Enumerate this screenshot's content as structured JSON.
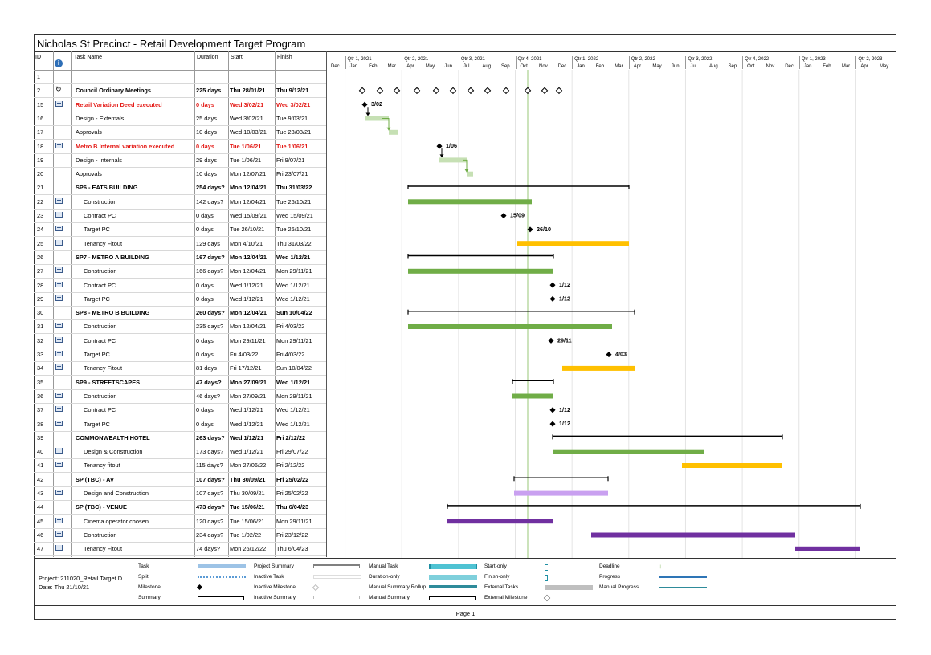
{
  "title": "Nicholas St Precinct - Retail Development Target Program",
  "columns": {
    "id": "ID",
    "name": "Task Name",
    "duration": "Duration",
    "start": "Start",
    "finish": "Finish"
  },
  "rows": [
    {
      "id": "1",
      "name": "",
      "duration": "",
      "start": "",
      "finish": "",
      "icon": "",
      "style": ""
    },
    {
      "id": "2",
      "name": "Council Ordinary Meetings",
      "duration": "225 days",
      "start": "Thu 28/01/21",
      "finish": "Thu 9/12/21",
      "icon": "recurring-icon",
      "style": "bold"
    },
    {
      "id": "15",
      "name": "Retail Variation Deed executed",
      "duration": "0 days",
      "start": "Wed 3/02/21",
      "finish": "Wed 3/02/21",
      "icon": "calendar-icon",
      "style": "red"
    },
    {
      "id": "16",
      "name": "Design - Externals",
      "duration": "25 days",
      "start": "Wed 3/02/21",
      "finish": "Tue 9/03/21",
      "icon": "",
      "style": ""
    },
    {
      "id": "17",
      "name": "Approvals",
      "duration": "10 days",
      "start": "Wed 10/03/21",
      "finish": "Tue 23/03/21",
      "icon": "",
      "style": ""
    },
    {
      "id": "18",
      "name": "Metro B Internal variation executed",
      "duration": "0 days",
      "start": "Tue 1/06/21",
      "finish": "Tue 1/06/21",
      "icon": "calendar-icon",
      "style": "red"
    },
    {
      "id": "19",
      "name": "Design - Internals",
      "duration": "29 days",
      "start": "Tue 1/06/21",
      "finish": "Fri 9/07/21",
      "icon": "",
      "style": ""
    },
    {
      "id": "20",
      "name": "Approvals",
      "duration": "10 days",
      "start": "Mon 12/07/21",
      "finish": "Fri 23/07/21",
      "icon": "",
      "style": ""
    },
    {
      "id": "21",
      "name": "SP6 - EATS BUILDING",
      "duration": "254 days?",
      "start": "Mon 12/04/21",
      "finish": "Thu 31/03/22",
      "icon": "",
      "style": "bold"
    },
    {
      "id": "22",
      "name": "Construction",
      "duration": "142 days?",
      "start": "Mon 12/04/21",
      "finish": "Tue 26/10/21",
      "icon": "calendar-icon",
      "style": "indent"
    },
    {
      "id": "23",
      "name": "Contract PC",
      "duration": "0 days",
      "start": "Wed 15/09/21",
      "finish": "Wed 15/09/21",
      "icon": "calendar-icon",
      "style": "indent"
    },
    {
      "id": "24",
      "name": "Target PC",
      "duration": "0 days",
      "start": "Tue 26/10/21",
      "finish": "Tue 26/10/21",
      "icon": "calendar-icon",
      "style": "indent"
    },
    {
      "id": "25",
      "name": "Tenancy Fitout",
      "duration": "129 days",
      "start": "Mon 4/10/21",
      "finish": "Thu 31/03/22",
      "icon": "calendar-icon",
      "style": "indent"
    },
    {
      "id": "26",
      "name": "SP7 - METRO A BUILDING",
      "duration": "167 days?",
      "start": "Mon 12/04/21",
      "finish": "Wed 1/12/21",
      "icon": "",
      "style": "bold"
    },
    {
      "id": "27",
      "name": "Construction",
      "duration": "166 days?",
      "start": "Mon 12/04/21",
      "finish": "Mon 29/11/21",
      "icon": "calendar-icon",
      "style": "indent"
    },
    {
      "id": "28",
      "name": "Contract PC",
      "duration": "0 days",
      "start": "Wed 1/12/21",
      "finish": "Wed 1/12/21",
      "icon": "calendar-icon",
      "style": "indent"
    },
    {
      "id": "29",
      "name": "Target PC",
      "duration": "0 days",
      "start": "Wed 1/12/21",
      "finish": "Wed 1/12/21",
      "icon": "calendar-icon",
      "style": "indent"
    },
    {
      "id": "30",
      "name": "SP8 - METRO B BUILDING",
      "duration": "260 days?",
      "start": "Mon 12/04/21",
      "finish": "Sun 10/04/22",
      "icon": "",
      "style": "bold"
    },
    {
      "id": "31",
      "name": "Construction",
      "duration": "235 days?",
      "start": "Mon 12/04/21",
      "finish": "Fri 4/03/22",
      "icon": "calendar-icon",
      "style": "indent"
    },
    {
      "id": "32",
      "name": "Contract PC",
      "duration": "0 days",
      "start": "Mon 29/11/21",
      "finish": "Mon 29/11/21",
      "icon": "calendar-icon",
      "style": "indent"
    },
    {
      "id": "33",
      "name": "Target PC",
      "duration": "0 days",
      "start": "Fri 4/03/22",
      "finish": "Fri 4/03/22",
      "icon": "calendar-icon",
      "style": "indent"
    },
    {
      "id": "34",
      "name": "Tenancy Fitout",
      "duration": "81 days",
      "start": "Fri 17/12/21",
      "finish": "Sun 10/04/22",
      "icon": "calendar-icon",
      "style": "indent"
    },
    {
      "id": "35",
      "name": "SP9 - STREETSCAPES",
      "duration": "47 days?",
      "start": "Mon 27/09/21",
      "finish": "Wed 1/12/21",
      "icon": "",
      "style": "bold"
    },
    {
      "id": "36",
      "name": "Construction",
      "duration": "46 days?",
      "start": "Mon 27/09/21",
      "finish": "Mon 29/11/21",
      "icon": "calendar-icon",
      "style": "indent"
    },
    {
      "id": "37",
      "name": "Contract PC",
      "duration": "0 days",
      "start": "Wed 1/12/21",
      "finish": "Wed 1/12/21",
      "icon": "calendar-icon",
      "style": "indent"
    },
    {
      "id": "38",
      "name": "Target PC",
      "duration": "0 days",
      "start": "Wed 1/12/21",
      "finish": "Wed 1/12/21",
      "icon": "calendar-icon",
      "style": "indent"
    },
    {
      "id": "39",
      "name": "COMMONWEALTH HOTEL",
      "duration": "263 days?",
      "start": "Wed 1/12/21",
      "finish": "Fri 2/12/22",
      "icon": "",
      "style": "bold"
    },
    {
      "id": "40",
      "name": "Design & Construction",
      "duration": "173 days?",
      "start": "Wed 1/12/21",
      "finish": "Fri 29/07/22",
      "icon": "calendar-icon",
      "style": "indent"
    },
    {
      "id": "41",
      "name": "Tenancy fitout",
      "duration": "115 days?",
      "start": "Mon 27/06/22",
      "finish": "Fri 2/12/22",
      "icon": "calendar-icon",
      "style": "indent"
    },
    {
      "id": "42",
      "name": "SP (TBC) - AV",
      "duration": "107 days?",
      "start": "Thu 30/09/21",
      "finish": "Fri 25/02/22",
      "icon": "",
      "style": "bold"
    },
    {
      "id": "43",
      "name": "Design and Construction",
      "duration": "107 days?",
      "start": "Thu 30/09/21",
      "finish": "Fri 25/02/22",
      "icon": "calendar-icon",
      "style": "indent"
    },
    {
      "id": "44",
      "name": "SP (TBC) - VENUE",
      "duration": "473 days?",
      "start": "Tue 15/06/21",
      "finish": "Thu 6/04/23",
      "icon": "",
      "style": "bold"
    },
    {
      "id": "45",
      "name": "Cinema operator chosen",
      "duration": "120 days?",
      "start": "Tue 15/06/21",
      "finish": "Mon 29/11/21",
      "icon": "calendar-icon",
      "style": "indent"
    },
    {
      "id": "46",
      "name": "Construction",
      "duration": "234 days?",
      "start": "Tue 1/02/22",
      "finish": "Fri 23/12/22",
      "icon": "calendar-icon",
      "style": "indent"
    },
    {
      "id": "47",
      "name": "Tenancy Fitout",
      "duration": "74 days?",
      "start": "Mon 26/12/22",
      "finish": "Thu 6/04/23",
      "icon": "calendar-icon",
      "style": "indent"
    }
  ],
  "timeline": {
    "quarters": [
      "Qtr 1, 2021",
      "Qtr 2, 2021",
      "Qtr 3, 2021",
      "Qtr 4, 2021",
      "Qtr 1, 2022",
      "Qtr 2, 2022",
      "Qtr 3, 2022",
      "Qtr 4, 2022",
      "Qtr 1, 2023",
      "Qtr 2, 2023"
    ],
    "months": [
      "Dec",
      "Jan",
      "Feb",
      "Mar",
      "Apr",
      "May",
      "Jun",
      "Jul",
      "Aug",
      "Sep",
      "Oct",
      "Nov",
      "Dec",
      "Jan",
      "Feb",
      "Mar",
      "Apr",
      "May",
      "Jun",
      "Jul",
      "Aug",
      "Sep",
      "Oct",
      "Nov",
      "Dec",
      "Jan",
      "Feb",
      "Mar",
      "Apr",
      "May"
    ],
    "status_date": "Thu 21/10/21"
  },
  "bars": [
    {
      "row": 3,
      "type": "milestone",
      "label": "3/02"
    },
    {
      "row": 4,
      "type": "bar",
      "color": "#c6e0b4"
    },
    {
      "row": 5,
      "type": "bar",
      "color": "#c6e0b4"
    },
    {
      "row": 6,
      "type": "milestone",
      "label": "1/06"
    },
    {
      "row": 7,
      "type": "bar",
      "color": "#c6e0b4"
    },
    {
      "row": 8,
      "type": "bar",
      "color": "#c6e0b4"
    },
    {
      "row": 9,
      "type": "summary"
    },
    {
      "row": 10,
      "type": "bar",
      "color": "#70ad47"
    },
    {
      "row": 11,
      "type": "milestone",
      "label": "15/09"
    },
    {
      "row": 12,
      "type": "milestone",
      "label": "26/10"
    },
    {
      "row": 13,
      "type": "bar",
      "color": "#ffc000"
    },
    {
      "row": 14,
      "type": "summary"
    },
    {
      "row": 15,
      "type": "bar",
      "color": "#70ad47"
    },
    {
      "row": 16,
      "type": "milestone",
      "label": "1/12"
    },
    {
      "row": 17,
      "type": "milestone",
      "label": "1/12"
    },
    {
      "row": 18,
      "type": "summary"
    },
    {
      "row": 19,
      "type": "bar",
      "color": "#70ad47"
    },
    {
      "row": 20,
      "type": "milestone",
      "label": "29/11"
    },
    {
      "row": 21,
      "type": "milestone",
      "label": "4/03"
    },
    {
      "row": 22,
      "type": "bar",
      "color": "#ffc000"
    },
    {
      "row": 23,
      "type": "summary"
    },
    {
      "row": 24,
      "type": "bar",
      "color": "#70ad47"
    },
    {
      "row": 25,
      "type": "milestone",
      "label": "1/12"
    },
    {
      "row": 26,
      "type": "milestone",
      "label": "1/12"
    },
    {
      "row": 27,
      "type": "summary"
    },
    {
      "row": 28,
      "type": "bar",
      "color": "#70ad47"
    },
    {
      "row": 29,
      "type": "bar",
      "color": "#ffc000"
    },
    {
      "row": 30,
      "type": "summary"
    },
    {
      "row": 31,
      "type": "bar",
      "color": "#c9a0f0"
    },
    {
      "row": 32,
      "type": "summary"
    },
    {
      "row": 33,
      "type": "bar",
      "color": "#7030a0"
    },
    {
      "row": 34,
      "type": "bar",
      "color": "#7030a0"
    },
    {
      "row": 35,
      "type": "bar",
      "color": "#7030a0"
    }
  ],
  "legend": {
    "project": "Project: 211020_Retail Target D",
    "date": "Date: Thu 21/10/21",
    "items": [
      "Task",
      "Split",
      "Milestone",
      "Summary",
      "Project Summary",
      "Inactive Task",
      "Inactive Milestone",
      "Inactive Summary",
      "Manual Task",
      "Duration-only",
      "Manual Summary Rollup",
      "Manual Summary",
      "Start-only",
      "Finish-only",
      "External Tasks",
      "External Milestone",
      "Deadline",
      "Progress",
      "Manual Progress"
    ]
  },
  "page": "Page 1"
}
